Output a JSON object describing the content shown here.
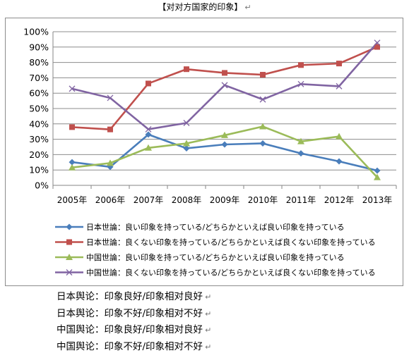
{
  "document": {
    "title": "【对对方国家的印象】",
    "paragraph_mark": "↵",
    "notes": [
      "日本舆论：印象良好/印象相对良好",
      "日本舆论：印象不好/印象相对不好",
      "中国舆论：印象良好/印象相对良好",
      "中国舆论：印象不好/印象相对不好"
    ]
  },
  "chart_data": {
    "type": "line",
    "categories": [
      "2005年",
      "2006年",
      "2007年",
      "2008年",
      "2009年",
      "2010年",
      "2011年",
      "2012年",
      "2013年"
    ],
    "y_ticks": [
      "0%",
      "10%",
      "20%",
      "30%",
      "40%",
      "50%",
      "60%",
      "70%",
      "80%",
      "90%",
      "100%"
    ],
    "ylim": [
      0,
      100
    ],
    "y_unit": "%",
    "grid": true,
    "legend_position": "bottom",
    "series": [
      {
        "name": "日本世論：良い印象を持っている/どちらかといえば良い印象を持っている",
        "color": "#4a7ebb",
        "marker": "diamond",
        "values": [
          15.1,
          12.0,
          33.1,
          24.1,
          26.6,
          27.3,
          20.8,
          15.6,
          9.6
        ]
      },
      {
        "name": "日本世論：良くない印象を持っている/どちらかといえば良くない印象を持っている",
        "color": "#c0504d",
        "marker": "square",
        "values": [
          37.9,
          36.4,
          66.3,
          75.6,
          73.2,
          72.0,
          78.3,
          79.3,
          90.1
        ]
      },
      {
        "name": "中国世論：良い印象を持っている/どちらかといえば良い印象を持っている",
        "color": "#9bbb59",
        "marker": "triangle",
        "values": [
          11.6,
          14.5,
          24.4,
          27.3,
          32.6,
          38.3,
          28.6,
          31.8,
          5.2
        ]
      },
      {
        "name": "中国世論：良くない印象を持っている/どちらかといえば良くない印象を持っている",
        "color": "#8064a2",
        "marker": "x",
        "values": [
          62.9,
          56.9,
          36.5,
          40.6,
          65.2,
          55.9,
          65.9,
          64.5,
          92.8
        ]
      }
    ]
  }
}
